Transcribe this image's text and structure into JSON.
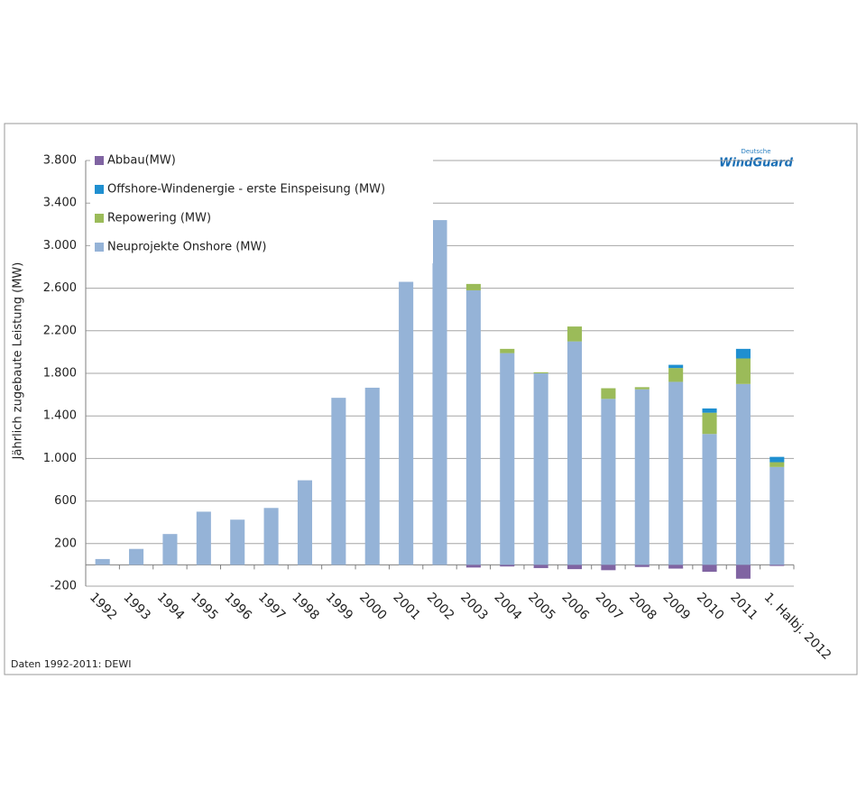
{
  "chart_data": {
    "type": "stacked_bar",
    "y_label": "Jährlich zugebaute Leistung (MW)",
    "source": "Daten 1992-2011: DEWI",
    "logo": [
      "Deutsche",
      "WindGuard"
    ],
    "categories": [
      "1992",
      "1993",
      "1994",
      "1995",
      "1996",
      "1997",
      "1998",
      "1999",
      "2000",
      "2001",
      "2002",
      "2003",
      "2004",
      "2005",
      "2006",
      "2007",
      "2008",
      "2009",
      "2010",
      "2011",
      "1. Halbj. 2012"
    ],
    "series": [
      {
        "name": "Abbau(MW)",
        "color": "#8064a2",
        "values": [
          0,
          0,
          0,
          0,
          0,
          0,
          0,
          0,
          0,
          0,
          0,
          -25,
          -15,
          -30,
          -40,
          -50,
          -20,
          -35,
          -65,
          -130,
          -10
        ]
      },
      {
        "name": "Offshore-Windenergie - erste Einspeisung (MW)",
        "color": "#1f8fd0",
        "values": [
          0,
          0,
          0,
          0,
          0,
          0,
          0,
          0,
          0,
          0,
          0,
          0,
          0,
          0,
          0,
          0,
          0,
          30,
          40,
          90,
          50
        ]
      },
      {
        "name": "Repowering (MW)",
        "color": "#9bbb59",
        "values": [
          0,
          0,
          0,
          0,
          0,
          0,
          0,
          0,
          0,
          0,
          0,
          60,
          40,
          10,
          140,
          100,
          20,
          130,
          200,
          240,
          45
        ]
      },
      {
        "name": "Neuprojekte Onshore (MW)",
        "color": "#95b3d7",
        "values": [
          55,
          150,
          290,
          500,
          425,
          535,
          795,
          1570,
          1665,
          2660,
          3240,
          2580,
          1990,
          1800,
          2100,
          1560,
          1650,
          1720,
          1230,
          1700,
          920
        ]
      }
    ],
    "ylim": [
      -200,
      3800
    ],
    "yticks": [
      -200,
      200,
      600,
      {
        "value": 1000,
        "label": "1.000"
      },
      {
        "value": 1400,
        "label": "1.400"
      },
      {
        "value": 1800,
        "label": "1.800"
      },
      {
        "value": 2200,
        "label": "2.200"
      },
      {
        "value": 2600,
        "label": "2.600"
      },
      {
        "value": 3000,
        "label": "3.000"
      },
      {
        "value": 3400,
        "label": "3.400"
      },
      {
        "value": 3800,
        "label": "3.800"
      }
    ],
    "grid": true
  }
}
